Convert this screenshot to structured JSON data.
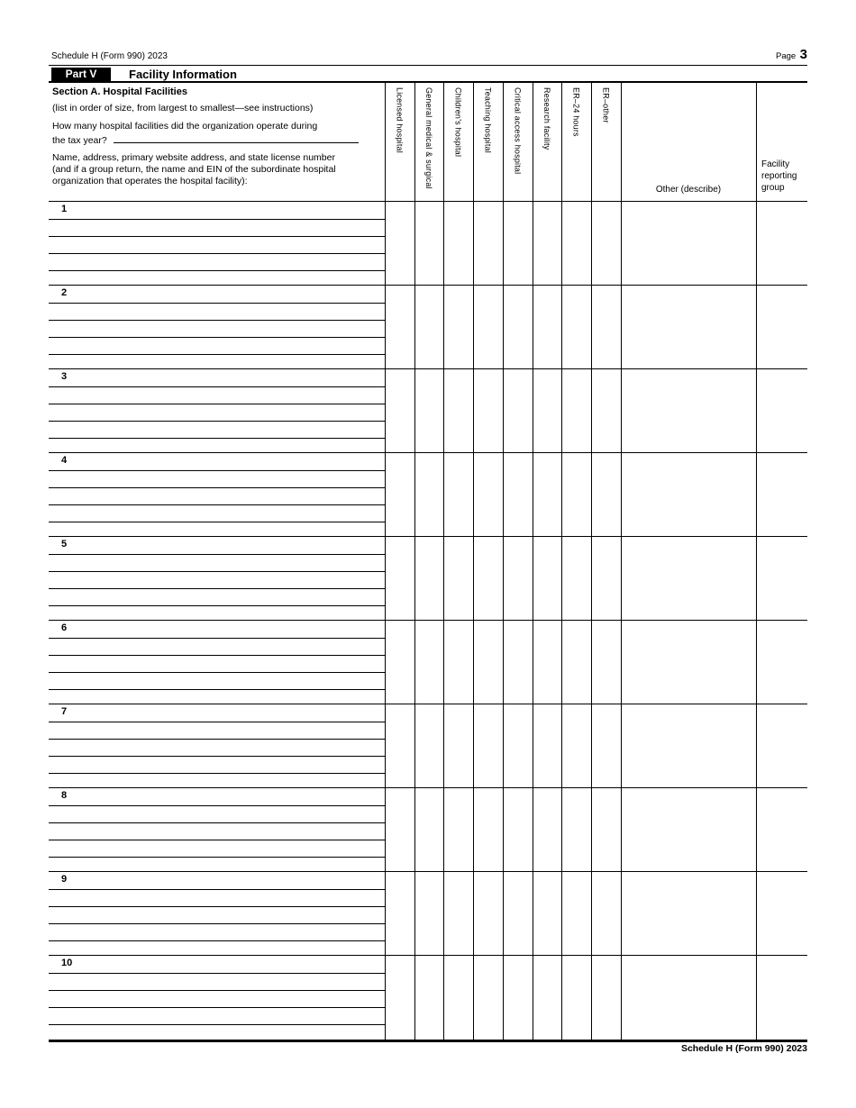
{
  "page": {
    "header_form_id": "Schedule H (Form 990) 2023",
    "page_word": "Page",
    "page_number": "3",
    "footer_form_id": "Schedule H (Form 990) 2023"
  },
  "part_header": {
    "part_label": "Part V",
    "part_title": "Facility Information"
  },
  "section_a": {
    "title": "Section A. Hospital Facilities",
    "subtitle": "(list in order of size, from largest to smallest—see instructions)",
    "question_lines": [
      "How many hospital facilities did the organization operate during",
      "the tax year?"
    ],
    "facility_count_value": "",
    "name_instruction_lines": [
      "Name, address, primary website address, and state license number",
      "(and if a group return, the name and EIN of the subordinate hospital",
      "organization that operates the hospital facility):"
    ]
  },
  "table": {
    "checkbox_columns": [
      {
        "key": "licensed-hospital",
        "label": "Licensed hospital"
      },
      {
        "key": "general-medical-surgical",
        "label": "General medical & surgical"
      },
      {
        "key": "childrens-hospital",
        "label": "Children’s hospital"
      },
      {
        "key": "teaching-hospital",
        "label": "Teaching hospital"
      },
      {
        "key": "critical-access-hospital",
        "label": "Critical access hospital"
      },
      {
        "key": "research-facility",
        "label": "Research facility"
      },
      {
        "key": "er-24-hours",
        "label": "ER–24 hours"
      },
      {
        "key": "er-other",
        "label": "ER–other"
      }
    ],
    "other_column_label": "Other (describe)",
    "facility_group_column_label": "Facility reporting group",
    "rows": [
      {
        "number": "1"
      },
      {
        "number": "2"
      },
      {
        "number": "3"
      },
      {
        "number": "4"
      },
      {
        "number": "5"
      },
      {
        "number": "6"
      },
      {
        "number": "7"
      },
      {
        "number": "8"
      },
      {
        "number": "9"
      },
      {
        "number": "10"
      }
    ]
  }
}
